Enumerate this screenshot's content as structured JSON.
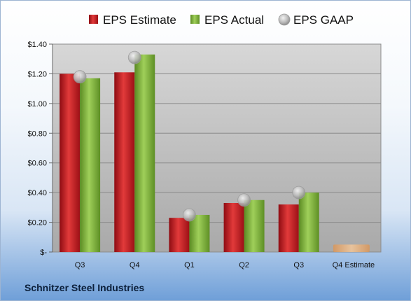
{
  "footer": {
    "company": "Schnitzer Steel Industries"
  },
  "chart_data": {
    "type": "bar",
    "title": "",
    "categories": [
      "Q3",
      "Q4",
      "Q1",
      "Q2",
      "Q3",
      "Q4 Estimate"
    ],
    "series": [
      {
        "name": "EPS Estimate",
        "kind": "bar",
        "color": "#c8141c",
        "values": [
          1.2,
          1.21,
          0.23,
          0.33,
          0.32,
          0.05
        ]
      },
      {
        "name": "EPS Actual",
        "kind": "bar",
        "color": "#7cae35",
        "values": [
          1.17,
          1.33,
          0.25,
          0.35,
          0.4,
          null
        ]
      },
      {
        "name": "EPS GAAP",
        "kind": "marker",
        "color": "#b4b4b4",
        "values": [
          1.18,
          1.31,
          0.25,
          0.35,
          0.4,
          null
        ]
      }
    ],
    "estimate_bar_color": "#e8b07a",
    "ylim": [
      0,
      1.4
    ],
    "yticks": [
      0,
      0.2,
      0.4,
      0.6,
      0.8,
      1.0,
      1.2,
      1.4
    ],
    "ytick_labels": [
      "$-",
      "$0.20",
      "$0.40",
      "$0.60",
      "$0.80",
      "$1.00",
      "$1.20",
      "$1.40"
    ],
    "grid": true,
    "legend_position": "top"
  }
}
